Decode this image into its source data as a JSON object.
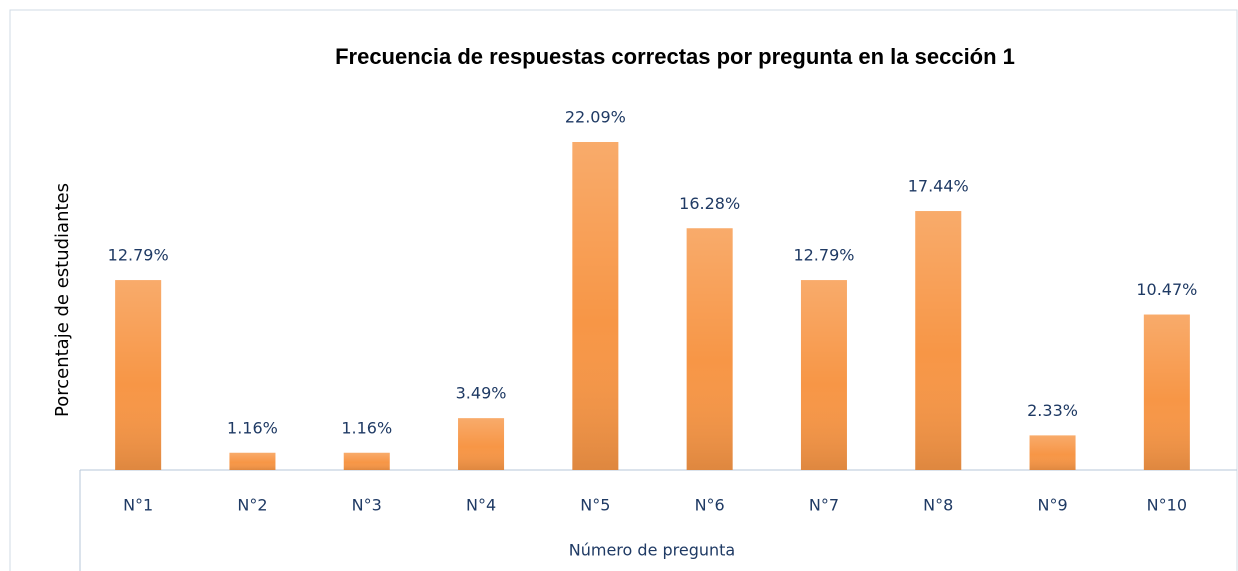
{
  "chart_data": {
    "type": "bar",
    "title": "Frecuencia de respuestas correctas por pregunta en la sección 1",
    "x_label": "Número de pregunta",
    "y_label": "Porcentaje de estudiantes",
    "categories": [
      "N°1",
      "N°2",
      "N°3",
      "N°4",
      "N°5",
      "N°6",
      "N°7",
      "N°8",
      "N°9",
      "N°10"
    ],
    "values": [
      12.79,
      1.16,
      1.16,
      3.49,
      22.09,
      16.28,
      12.79,
      17.44,
      2.33,
      10.47
    ],
    "value_labels": [
      "12.79%",
      "1.16%",
      "1.16%",
      "3.49%",
      "22.09%",
      "16.28%",
      "12.79%",
      "17.44%",
      "2.33%",
      "10.47%"
    ],
    "color": "#f79646"
  }
}
